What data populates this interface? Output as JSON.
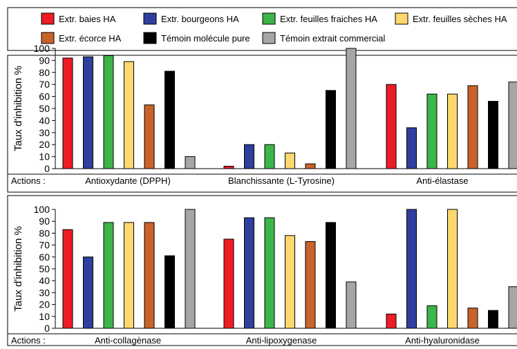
{
  "legend": {
    "items": [
      {
        "label": "Extr. baies HA",
        "color": "#ee1c25"
      },
      {
        "label": "Extr. bourgeons  HA",
        "color": "#2e3f9d"
      },
      {
        "label": "Extr. feuilles fraiches HA",
        "color": "#3cb54a"
      },
      {
        "label": "Extr. feuilles sèches HA",
        "color": "#fdd86e"
      },
      {
        "label": "Extr. écorce HA",
        "color": "#c8632a"
      },
      {
        "label": "Témoin molécule pure",
        "color": "#000000"
      },
      {
        "label": "Témoin extrait commercial",
        "color": "#a6a6a6"
      }
    ]
  },
  "actions_label": "Actions :",
  "chart_data": [
    {
      "type": "bar",
      "ylabel": "Taux d'inhibition %",
      "ylim": [
        0,
        100
      ],
      "yticks": [
        0,
        10,
        20,
        30,
        40,
        50,
        60,
        70,
        80,
        90,
        100
      ],
      "categories": [
        "Antioxydante (DPPH)",
        "Blanchissante (L-Tyrosine)",
        "Anti-élastase"
      ],
      "series": [
        {
          "name": "Extr. baies HA",
          "values": [
            92,
            2,
            70
          ]
        },
        {
          "name": "Extr. bourgeons  HA",
          "values": [
            93,
            20,
            34
          ]
        },
        {
          "name": "Extr. feuilles fraiches HA",
          "values": [
            94,
            20,
            62
          ]
        },
        {
          "name": "Extr. feuilles sèches HA",
          "values": [
            89,
            13,
            62
          ]
        },
        {
          "name": "Extr. écorce HA",
          "values": [
            53,
            4,
            69
          ]
        },
        {
          "name": "Témoin molécule pure",
          "values": [
            81,
            65,
            56
          ]
        },
        {
          "name": "Témoin extrait commercial",
          "values": [
            10,
            100,
            72
          ]
        }
      ],
      "grid": false
    },
    {
      "type": "bar",
      "ylabel": "Taux d'inhibition %",
      "ylim": [
        0,
        100
      ],
      "yticks": [
        0,
        10,
        20,
        30,
        40,
        50,
        60,
        70,
        80,
        90,
        100
      ],
      "categories": [
        "Anti-collagènase",
        "Anti-lipoxygenase",
        "Anti-hyaluronidase"
      ],
      "series": [
        {
          "name": "Extr. baies HA",
          "values": [
            83,
            75,
            12
          ]
        },
        {
          "name": "Extr. bourgeons  HA",
          "values": [
            60,
            93,
            100
          ]
        },
        {
          "name": "Extr. feuilles fraiches HA",
          "values": [
            89,
            93,
            19
          ]
        },
        {
          "name": "Extr. feuilles sèches HA",
          "values": [
            89,
            78,
            100
          ]
        },
        {
          "name": "Extr. écorce HA",
          "values": [
            89,
            73,
            17
          ]
        },
        {
          "name": "Témoin molécule pure",
          "values": [
            61,
            89,
            15
          ]
        },
        {
          "name": "Témoin extrait commercial",
          "values": [
            100,
            39,
            35
          ]
        }
      ],
      "grid": false
    }
  ]
}
